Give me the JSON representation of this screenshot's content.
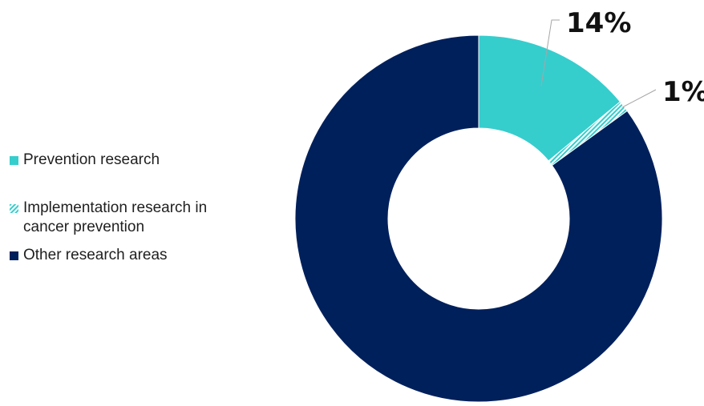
{
  "chart_data": {
    "type": "pie",
    "variant": "donut",
    "categories": [
      "Prevention research",
      "Implementation research in cancer prevention",
      "Other research areas"
    ],
    "values": [
      14,
      1,
      85
    ],
    "data_labels": [
      "14%",
      "1%",
      ""
    ],
    "colors": [
      "#36CDCD",
      "#36CDCD",
      "#00205B"
    ],
    "patterns": [
      "solid",
      "diagonal-hatch",
      "solid"
    ],
    "legend_placement": "left",
    "legend": [
      {
        "label": "Prevention research",
        "color": "#36CDCD",
        "pattern": "solid"
      },
      {
        "label": "Implementation research in cancer prevention",
        "label_lines": [
          "Implementation research in",
          "cancer prevention"
        ],
        "color": "#36CDCD",
        "pattern": "diagonal-hatch"
      },
      {
        "label": "Other research areas",
        "color": "#00205B",
        "pattern": "solid"
      }
    ]
  }
}
